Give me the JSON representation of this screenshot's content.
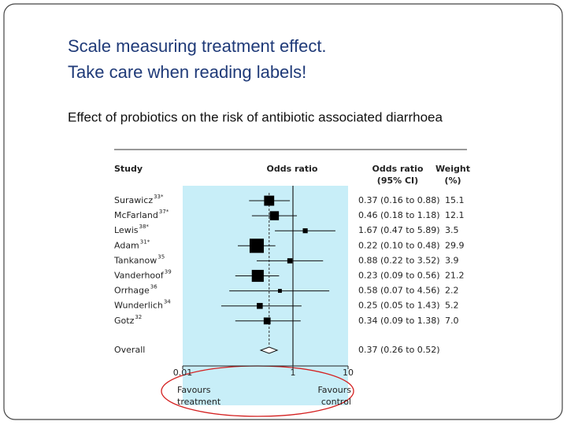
{
  "slide": {
    "title_lines": [
      "Scale measuring treatment effect.",
      "Take care when reading labels!"
    ],
    "subtitle": "Effect of probiotics on the risk of antibiotic associated diarrhoea"
  },
  "chart_data": {
    "type": "forest",
    "headers": {
      "study": [
        "Study"
      ],
      "plot": [
        "Odds ratio"
      ],
      "ci": [
        "Odds ratio",
        "(95% CI)"
      ],
      "weight": [
        "Weight",
        "(%)"
      ]
    },
    "categories": [
      "Surawicz",
      "McFarland",
      "Lewis",
      "Adam",
      "Tankanow",
      "Vanderhoof",
      "Orrhage",
      "Wunderlich",
      "Gotz"
    ],
    "refs": [
      "33*",
      "37*",
      "38*",
      "31*",
      "35",
      "39",
      "36",
      "34",
      "32"
    ],
    "values": [
      0.37,
      0.46,
      1.67,
      0.22,
      0.88,
      0.23,
      0.58,
      0.25,
      0.34
    ],
    "ci_low": [
      0.16,
      0.18,
      0.47,
      0.1,
      0.22,
      0.09,
      0.07,
      0.05,
      0.09
    ],
    "ci_high": [
      0.88,
      1.18,
      5.89,
      0.48,
      3.52,
      0.56,
      4.56,
      1.43,
      1.38
    ],
    "value_labels": [
      "0.37 (0.16 to 0.88)",
      "0.46 (0.18 to 1.18)",
      "1.67 (0.47 to 5.89)",
      "0.22 (0.10 to 0.48)",
      "0.88 (0.22 to 3.52)",
      "0.23 (0.09 to 0.56)",
      "0.58 (0.07 to 4.56)",
      "0.25 (0.05 to 1.43)",
      "0.34 (0.09 to 1.38)"
    ],
    "weights": [
      15.1,
      12.1,
      3.5,
      29.9,
      3.9,
      21.2,
      2.2,
      5.2,
      {
        "value": 7.0,
        "label": "7.0"
      }
    ],
    "overall": {
      "name": "Overall",
      "value": 0.37,
      "ci_low": 0.26,
      "ci_high": 0.52,
      "label": "0.37 (0.26 to 0.52)"
    },
    "xlim": [
      0.01,
      10
    ],
    "xticks": [
      0.01,
      1,
      10
    ],
    "log_scale": true,
    "background_color": "#c8eef8",
    "annotations": {
      "left": [
        "Favours",
        "treatment"
      ],
      "right": [
        "Favours",
        "control"
      ]
    }
  }
}
